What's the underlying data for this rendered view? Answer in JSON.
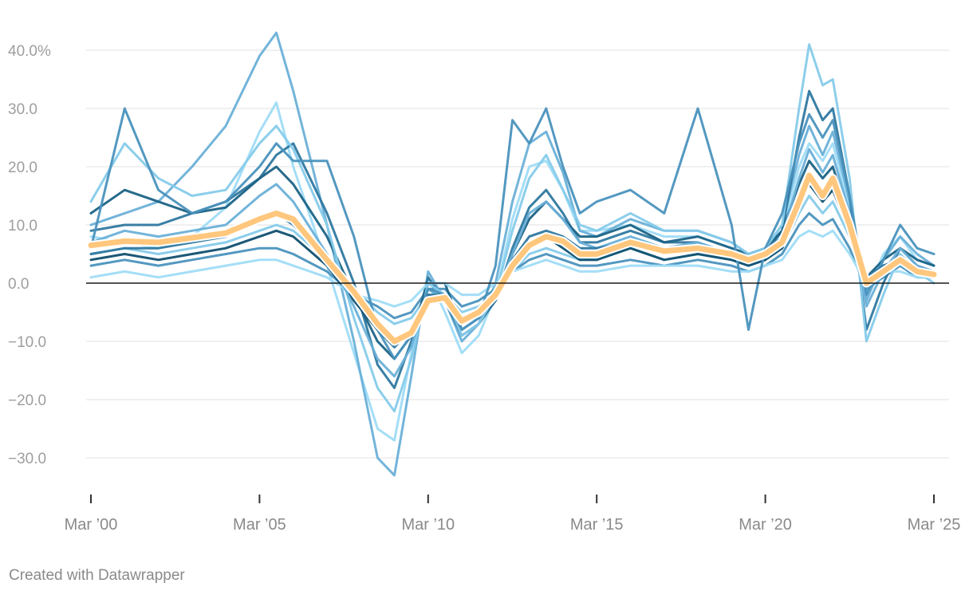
{
  "credit": "Created with Datawrapper",
  "colors": {
    "background": "#ffffff",
    "gridline": "#e2e2e2",
    "zero_line": "#1a1a1a",
    "tick_label": "#9e9e9e",
    "highlight": "#ffc77d",
    "series_palette": [
      "#9fdcf7",
      "#86cbea",
      "#6ab0d8",
      "#4a92bd",
      "#2f78a0",
      "#1b6386",
      "#0f4f6f"
    ]
  },
  "chart_data": {
    "type": "line",
    "title": "",
    "xlabel": "",
    "ylabel": "",
    "y_unit": "%",
    "ylim": [
      -35,
      44
    ],
    "xlim": [
      2000.0,
      2025.0
    ],
    "grid": true,
    "legend": "none",
    "y_ticks": [
      {
        "value": 40,
        "label": "40.0%"
      },
      {
        "value": 30,
        "label": "30.0"
      },
      {
        "value": 20,
        "label": "20.0"
      },
      {
        "value": 10,
        "label": "10.0"
      },
      {
        "value": 0,
        "label": "0.0"
      },
      {
        "value": -10,
        "label": "−10.0"
      },
      {
        "value": -20,
        "label": "−20.0"
      },
      {
        "value": -30,
        "label": "−30.0"
      }
    ],
    "x_ticks": [
      {
        "value": 2000,
        "label": "Mar ’00"
      },
      {
        "value": 2005,
        "label": "Mar ’05"
      },
      {
        "value": 2010,
        "label": "Mar ’10"
      },
      {
        "value": 2015,
        "label": "Mar ’15"
      },
      {
        "value": 2020,
        "label": "Mar ’20"
      },
      {
        "value": 2025,
        "label": "Mar ’25"
      }
    ],
    "highlight_series": {
      "x": [
        2000.0,
        2001.0,
        2002.0,
        2003.0,
        2004.0,
        2005.0,
        2005.5,
        2006.0,
        2007.0,
        2007.8,
        2008.5,
        2009.0,
        2009.5,
        2010.0,
        2010.5,
        2011.0,
        2011.5,
        2012.0,
        2012.5,
        2013.0,
        2013.5,
        2014.0,
        2014.5,
        2015.0,
        2016.0,
        2017.0,
        2018.0,
        2019.0,
        2019.5,
        2020.0,
        2020.5,
        2021.0,
        2021.3,
        2021.7,
        2022.0,
        2022.5,
        2023.0,
        2023.5,
        2024.0,
        2024.5,
        2025.0
      ],
      "values": [
        6.5,
        7.2,
        7.0,
        7.8,
        8.6,
        11.0,
        12.0,
        11.0,
        4.0,
        -1.5,
        -7.0,
        -10.0,
        -8.5,
        -3.0,
        -2.5,
        -6.5,
        -5.0,
        -2.0,
        3.0,
        6.5,
        8.0,
        7.2,
        5.0,
        5.0,
        7.0,
        5.5,
        6.0,
        5.0,
        4.0,
        5.0,
        7.0,
        14.0,
        18.5,
        15.0,
        18.0,
        10.0,
        0.0,
        2.0,
        4.0,
        2.0,
        1.5
      ]
    },
    "series": [
      {
        "values": [
          8.0,
          7.0,
          6.0,
          8.0,
          13.0,
          26.0,
          31.0,
          20.0,
          3.0,
          -12.0,
          -25.0,
          -27.0,
          -12.0,
          1.0,
          -5.0,
          -12.0,
          -9.0,
          -2.0,
          11.0,
          20.0,
          21.0,
          16.0,
          9.0,
          9.0,
          10.0,
          8.0,
          8.0,
          6.0,
          4.0,
          6.0,
          9.0,
          20.0,
          24.0,
          21.0,
          24.0,
          13.0,
          -2.0,
          5.0,
          8.0,
          4.0,
          3.0
        ]
      },
      {
        "values": [
          5.0,
          6.0,
          5.0,
          6.0,
          7.0,
          9.0,
          10.0,
          9.0,
          4.0,
          -1.0,
          -5.0,
          -7.0,
          -6.0,
          -2.0,
          -2.0,
          -5.0,
          -4.0,
          -2.0,
          2.0,
          5.0,
          6.0,
          5.0,
          4.0,
          4.0,
          6.0,
          4.0,
          5.0,
          4.0,
          3.0,
          4.0,
          6.0,
          12.0,
          15.0,
          12.0,
          14.0,
          8.0,
          0.0,
          2.0,
          3.0,
          2.0,
          1.0
        ]
      },
      {
        "values": [
          10.0,
          12.0,
          14.0,
          20.0,
          27.0,
          39.0,
          43.0,
          33.0,
          10.0,
          -10.0,
          -30.0,
          -33.0,
          -16.0,
          2.0,
          -3.0,
          -10.0,
          -7.0,
          0.0,
          14.0,
          24.0,
          26.0,
          19.0,
          9.0,
          8.0,
          11.0,
          9.0,
          9.0,
          7.0,
          5.0,
          6.0,
          10.0,
          22.0,
          27.0,
          22.0,
          26.0,
          14.0,
          -3.0,
          4.0,
          8.0,
          5.0,
          3.0
        ]
      },
      {
        "values": [
          3.0,
          4.0,
          3.0,
          4.0,
          5.0,
          6.0,
          6.0,
          5.0,
          2.0,
          -2.0,
          -4.0,
          -6.0,
          -5.0,
          -1.0,
          -1.0,
          -4.0,
          -3.0,
          -1.0,
          2.0,
          4.0,
          5.0,
          4.0,
          3.0,
          3.0,
          4.0,
          3.0,
          4.0,
          3.0,
          2.0,
          3.0,
          5.0,
          10.0,
          12.0,
          10.0,
          11.0,
          6.0,
          -1.0,
          1.0,
          3.0,
          1.0,
          1.0
        ]
      },
      {
        "values": [
          9.0,
          10.0,
          10.0,
          12.0,
          14.0,
          18.0,
          22.0,
          24.0,
          12.0,
          0.0,
          -14.0,
          -18.0,
          -10.0,
          1.0,
          -3.0,
          -9.0,
          -7.0,
          -3.0,
          6.0,
          13.0,
          16.0,
          12.0,
          7.0,
          7.0,
          9.0,
          7.0,
          7.0,
          5.0,
          4.0,
          5.0,
          9.0,
          25.0,
          33.0,
          28.0,
          30.0,
          15.0,
          -8.0,
          0.0,
          6.0,
          3.0,
          2.0
        ]
      },
      {
        "values": [
          12.0,
          16.0,
          14.0,
          12.0,
          13.0,
          18.0,
          20.0,
          17.0,
          8.0,
          -2.0,
          -10.0,
          -13.0,
          -9.0,
          0.0,
          0.0,
          -8.0,
          -6.0,
          -3.0,
          5.0,
          11.0,
          14.0,
          11.0,
          8.0,
          8.0,
          10.0,
          7.0,
          8.0,
          6.0,
          5.0,
          6.0,
          9.0,
          17.0,
          21.0,
          18.0,
          20.0,
          11.0,
          1.0,
          4.0,
          6.0,
          4.0,
          3.0
        ]
      },
      {
        "values": [
          4.0,
          5.0,
          4.0,
          5.0,
          6.0,
          8.0,
          9.0,
          8.0,
          3.0,
          -3.0,
          -8.0,
          -10.0,
          -8.0,
          -3.0,
          -2.0,
          -6.0,
          -5.0,
          -2.0,
          3.0,
          7.0,
          8.0,
          6.0,
          4.0,
          4.0,
          6.0,
          4.0,
          5.0,
          4.0,
          3.0,
          4.0,
          6.0,
          13.0,
          17.0,
          14.0,
          16.0,
          9.0,
          0.0,
          3.0,
          4.0,
          2.0,
          1.0
        ]
      },
      {
        "values": [
          1.0,
          2.0,
          1.0,
          2.0,
          3.0,
          4.0,
          4.0,
          3.0,
          1.0,
          -2.0,
          -3.0,
          -4.0,
          -3.0,
          0.0,
          0.0,
          -2.0,
          -2.0,
          0.0,
          2.0,
          3.0,
          4.0,
          3.0,
          2.0,
          2.0,
          3.0,
          3.0,
          3.0,
          2.0,
          2.0,
          3.0,
          4.0,
          8.0,
          9.0,
          8.0,
          9.0,
          5.0,
          0.0,
          2.0,
          2.0,
          1.0,
          1.0
        ]
      },
      {
        "values": [
          14.0,
          24.0,
          18.0,
          15.0,
          16.0,
          24.0,
          27.0,
          23.0,
          10.0,
          -6.0,
          -18.0,
          -22.0,
          -13.0,
          0.0,
          -2.0,
          -9.0,
          -7.0,
          -2.0,
          9.0,
          18.0,
          22.0,
          16.0,
          10.0,
          9.0,
          12.0,
          9.0,
          9.0,
          7.0,
          5.0,
          6.0,
          10.0,
          30.0,
          41.0,
          34.0,
          35.0,
          18.0,
          -10.0,
          -2.0,
          5.0,
          2.0,
          0.0
        ]
      },
      {
        "values": [
          7.0,
          9.0,
          8.0,
          9.0,
          10.0,
          15.0,
          17.0,
          14.0,
          5.0,
          -4.0,
          -13.0,
          -16.0,
          -11.0,
          -1.0,
          -3.0,
          -8.0,
          -6.0,
          -2.0,
          5.0,
          12.0,
          14.0,
          11.0,
          7.0,
          6.0,
          8.0,
          6.0,
          7.0,
          5.0,
          4.0,
          5.0,
          8.0,
          18.0,
          23.0,
          19.0,
          22.0,
          12.0,
          -4.0,
          2.0,
          6.0,
          3.0,
          2.0
        ]
      },
      {
        "values": [
          6.0,
          30.0,
          16.0,
          12.0,
          14.0,
          20.0,
          24.0,
          21.0,
          21.0,
          8.0,
          -8.0,
          -13.0,
          -9.0,
          -1.0,
          -2.0,
          -8.0,
          -6.0,
          3.0,
          28.0,
          24.0,
          30.0,
          20.0,
          12.0,
          14.0,
          16.0,
          12.0,
          30.0,
          10.0,
          -8.0,
          6.0,
          12.0,
          24.0,
          29.0,
          25.0,
          28.0,
          15.0,
          -2.0,
          4.0,
          10.0,
          6.0,
          5.0
        ]
      },
      {
        "values": [
          5.0,
          6.0,
          6.0,
          7.0,
          8.0,
          11.0,
          12.0,
          10.0,
          4.0,
          -2.0,
          -8.0,
          -11.0,
          -8.0,
          -2.0,
          -2.0,
          -6.0,
          -5.0,
          -2.0,
          4.0,
          8.0,
          9.0,
          8.0,
          6.0,
          6.0,
          7.0,
          6.0,
          6.0,
          5.0,
          4.0,
          5.0,
          7.0,
          15.0,
          19.0,
          16.0,
          18.0,
          10.0,
          1.0,
          3.0,
          4.0,
          2.0,
          2.0
        ]
      }
    ]
  }
}
